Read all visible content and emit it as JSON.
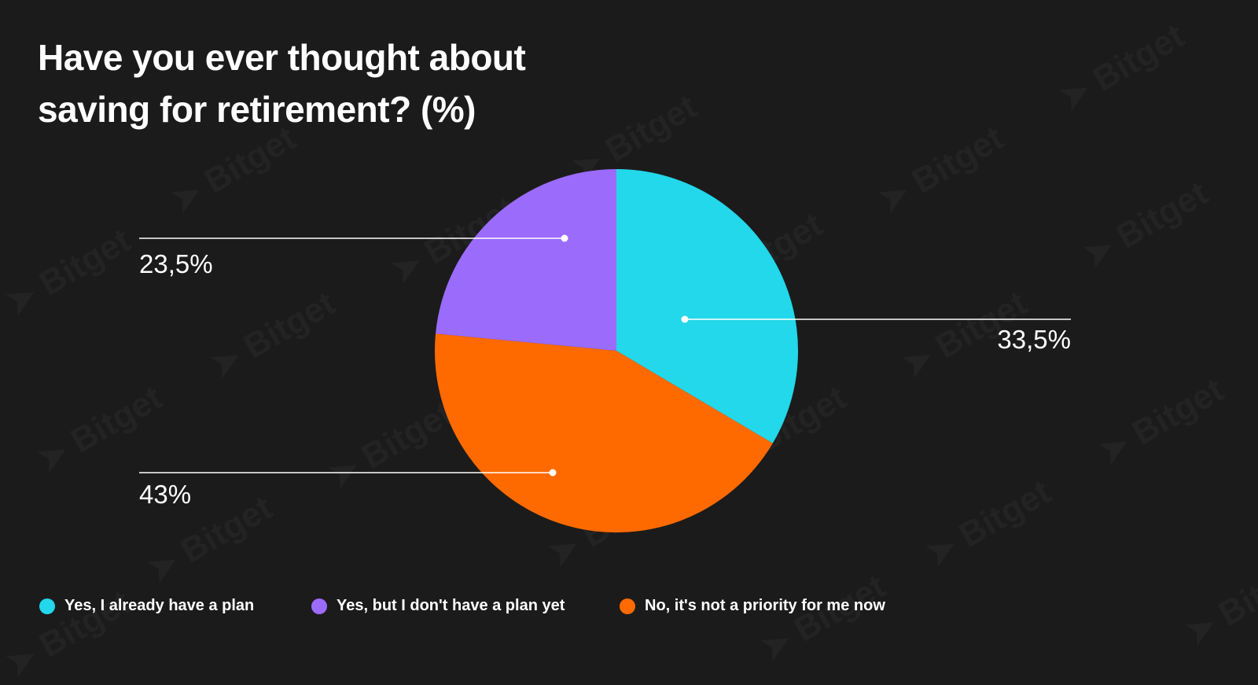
{
  "title_line1": "Have you ever thought about",
  "title_line2": "saving for retirement? (%)",
  "watermark": "Bitget",
  "chart_data": {
    "type": "pie",
    "title": "Have you ever thought about saving for retirement? (%)",
    "start": "12 o'clock, clockwise",
    "slices": [
      {
        "label": "Yes, I already have a plan",
        "value": 33.5,
        "display": "33,5%",
        "color": "#22d8ea"
      },
      {
        "label": "No, it's not a priority for me now",
        "value": 43,
        "display": "43%",
        "color": "#ff6a00"
      },
      {
        "label": "Yes, but I don't have a plan yet",
        "value": 23.5,
        "display": "23,5%",
        "color": "#9b6bfc"
      }
    ],
    "legend": [
      {
        "label": "Yes, I already have a plan",
        "color": "#22d8ea"
      },
      {
        "label": "Yes, but I don't have a plan yet",
        "color": "#9b6bfc"
      },
      {
        "label": "No, it's not a priority for me now",
        "color": "#ff6a00"
      }
    ],
    "legend_position": "bottom"
  }
}
